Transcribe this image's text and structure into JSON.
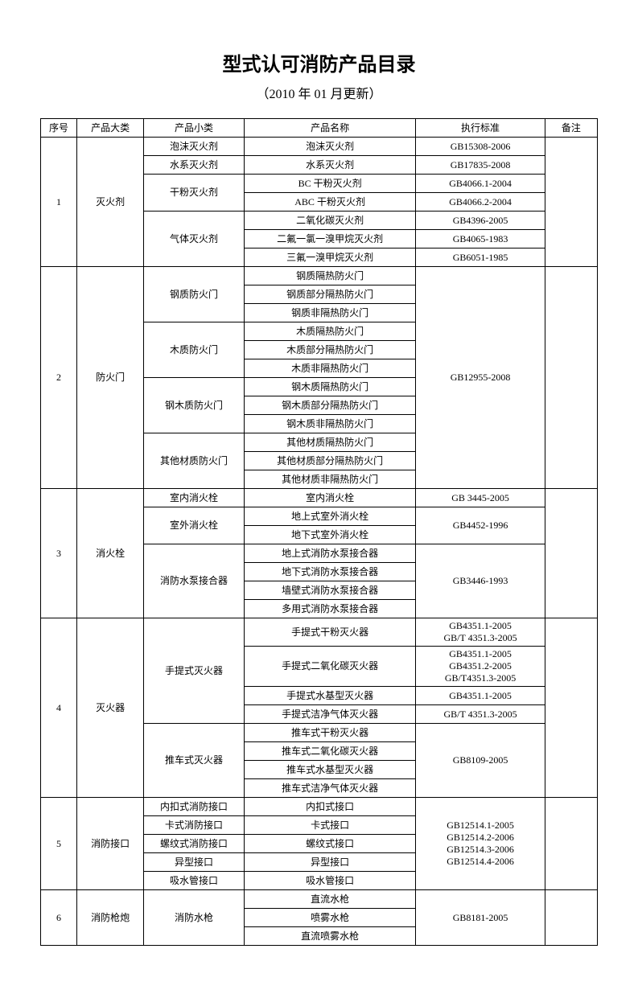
{
  "title": "型式认可消防产品目录",
  "subtitle": "（2010 年 01 月更新）",
  "headers": {
    "seq": "序号",
    "bigcat": "产品大类",
    "smallcat": "产品小类",
    "name": "产品名称",
    "std": "执行标准",
    "note": "备注"
  },
  "rows": [
    {
      "seq": "1",
      "big": "灭火剂",
      "small": "泡沫灭火剂",
      "name": "泡沫灭火剂",
      "std": "GB15308-2006",
      "seqspan": 7,
      "bigspan": 7,
      "smallspan": 1,
      "stdspan": 1,
      "note": ""
    },
    {
      "small": "水系灭火剂",
      "name": "水系灭火剂",
      "std": "GB17835-2008",
      "smallspan": 1,
      "stdspan": 1
    },
    {
      "small": "干粉灭火剂",
      "name": "BC 干粉灭火剂",
      "std": "GB4066.1-2004",
      "smallspan": 2,
      "stdspan": 1
    },
    {
      "name": "ABC 干粉灭火剂",
      "std": "GB4066.2-2004",
      "stdspan": 1
    },
    {
      "small": "气体灭火剂",
      "name": "二氧化碳灭火剂",
      "std": "GB4396-2005",
      "smallspan": 3,
      "stdspan": 1
    },
    {
      "name": "二氟一氯一溴甲烷灭火剂",
      "std": "GB4065-1983",
      "stdspan": 1
    },
    {
      "name": "三氟一溴甲烷灭火剂",
      "std": "GB6051-1985",
      "stdspan": 1
    },
    {
      "seq": "2",
      "big": "防火门",
      "small": "钢质防火门",
      "name": "钢质隔热防火门",
      "std": "GB12955-2008",
      "seqspan": 12,
      "bigspan": 12,
      "smallspan": 3,
      "stdspan": 12,
      "note": ""
    },
    {
      "name": "钢质部分隔热防火门"
    },
    {
      "name": "钢质非隔热防火门"
    },
    {
      "small": "木质防火门",
      "name": "木质隔热防火门",
      "smallspan": 3
    },
    {
      "name": "木质部分隔热防火门"
    },
    {
      "name": "木质非隔热防火门"
    },
    {
      "small": "钢木质防火门",
      "name": "钢木质隔热防火门",
      "smallspan": 3
    },
    {
      "name": "钢木质部分隔热防火门"
    },
    {
      "name": "钢木质非隔热防火门"
    },
    {
      "small": "其他材质防火门",
      "name": "其他材质隔热防火门",
      "smallspan": 3
    },
    {
      "name": "其他材质部分隔热防火门"
    },
    {
      "name": "其他材质非隔热防火门"
    },
    {
      "seq": "3",
      "big": "消火栓",
      "small": "室内消火栓",
      "name": "室内消火栓",
      "std": "GB 3445-2005",
      "seqspan": 7,
      "bigspan": 7,
      "smallspan": 1,
      "stdspan": 1,
      "note": ""
    },
    {
      "small": "室外消火栓",
      "name": "地上式室外消火栓",
      "std": "GB4452-1996",
      "smallspan": 2,
      "stdspan": 2
    },
    {
      "name": "地下式室外消火栓"
    },
    {
      "small": "消防水泵接合器",
      "name": "地上式消防水泵接合器",
      "std": "GB3446-1993",
      "smallspan": 4,
      "stdspan": 4
    },
    {
      "name": "地下式消防水泵接合器"
    },
    {
      "name": "墙壁式消防水泵接合器"
    },
    {
      "name": "多用式消防水泵接合器"
    },
    {
      "seq": "4",
      "big": "灭火器",
      "small": "手提式灭火器",
      "name": "手提式干粉灭火器",
      "std": "GB4351.1-2005\nGB/T 4351.3-2005",
      "seqspan": 8,
      "bigspan": 8,
      "smallspan": 4,
      "stdspan": 1,
      "note": "",
      "stdmulti": true
    },
    {
      "name": "手提式二氧化碳灭火器",
      "std": "GB4351.1-2005\nGB4351.2-2005\nGB/T4351.3-2005",
      "stdspan": 1,
      "stdmulti": true
    },
    {
      "name": "手提式水基型灭火器",
      "std": "GB4351.1-2005",
      "stdspan": 1
    },
    {
      "name": "手提式洁净气体灭火器",
      "std": "GB/T 4351.3-2005",
      "stdspan": 1
    },
    {
      "small": "推车式灭火器",
      "name": "推车式干粉灭火器",
      "std": "GB8109-2005",
      "smallspan": 4,
      "stdspan": 4
    },
    {
      "name": "推车式二氧化碳灭火器"
    },
    {
      "name": "推车式水基型灭火器"
    },
    {
      "name": "推车式洁净气体灭火器"
    },
    {
      "seq": "5",
      "big": "消防接口",
      "small": "内扣式消防接口",
      "name": "内扣式接口",
      "std": "GB12514.1-2005\nGB12514.2-2006\nGB12514.3-2006\nGB12514.4-2006",
      "seqspan": 5,
      "bigspan": 5,
      "smallspan": 1,
      "stdspan": 5,
      "note": "",
      "stdmulti": true
    },
    {
      "small": "卡式消防接口",
      "name": "卡式接口",
      "smallspan": 1
    },
    {
      "small": "螺纹式消防接口",
      "name": "螺纹式接口",
      "smallspan": 1
    },
    {
      "small": "异型接口",
      "name": "异型接口",
      "smallspan": 1
    },
    {
      "small": "吸水管接口",
      "name": "吸水管接口",
      "smallspan": 1
    },
    {
      "seq": "6",
      "big": "消防枪炮",
      "small": "消防水枪",
      "name": "直流水枪",
      "std": "GB8181-2005",
      "seqspan": 3,
      "bigspan": 3,
      "smallspan": 3,
      "stdspan": 3,
      "note": ""
    },
    {
      "name": "喷雾水枪"
    },
    {
      "name": "直流喷雾水枪"
    }
  ]
}
